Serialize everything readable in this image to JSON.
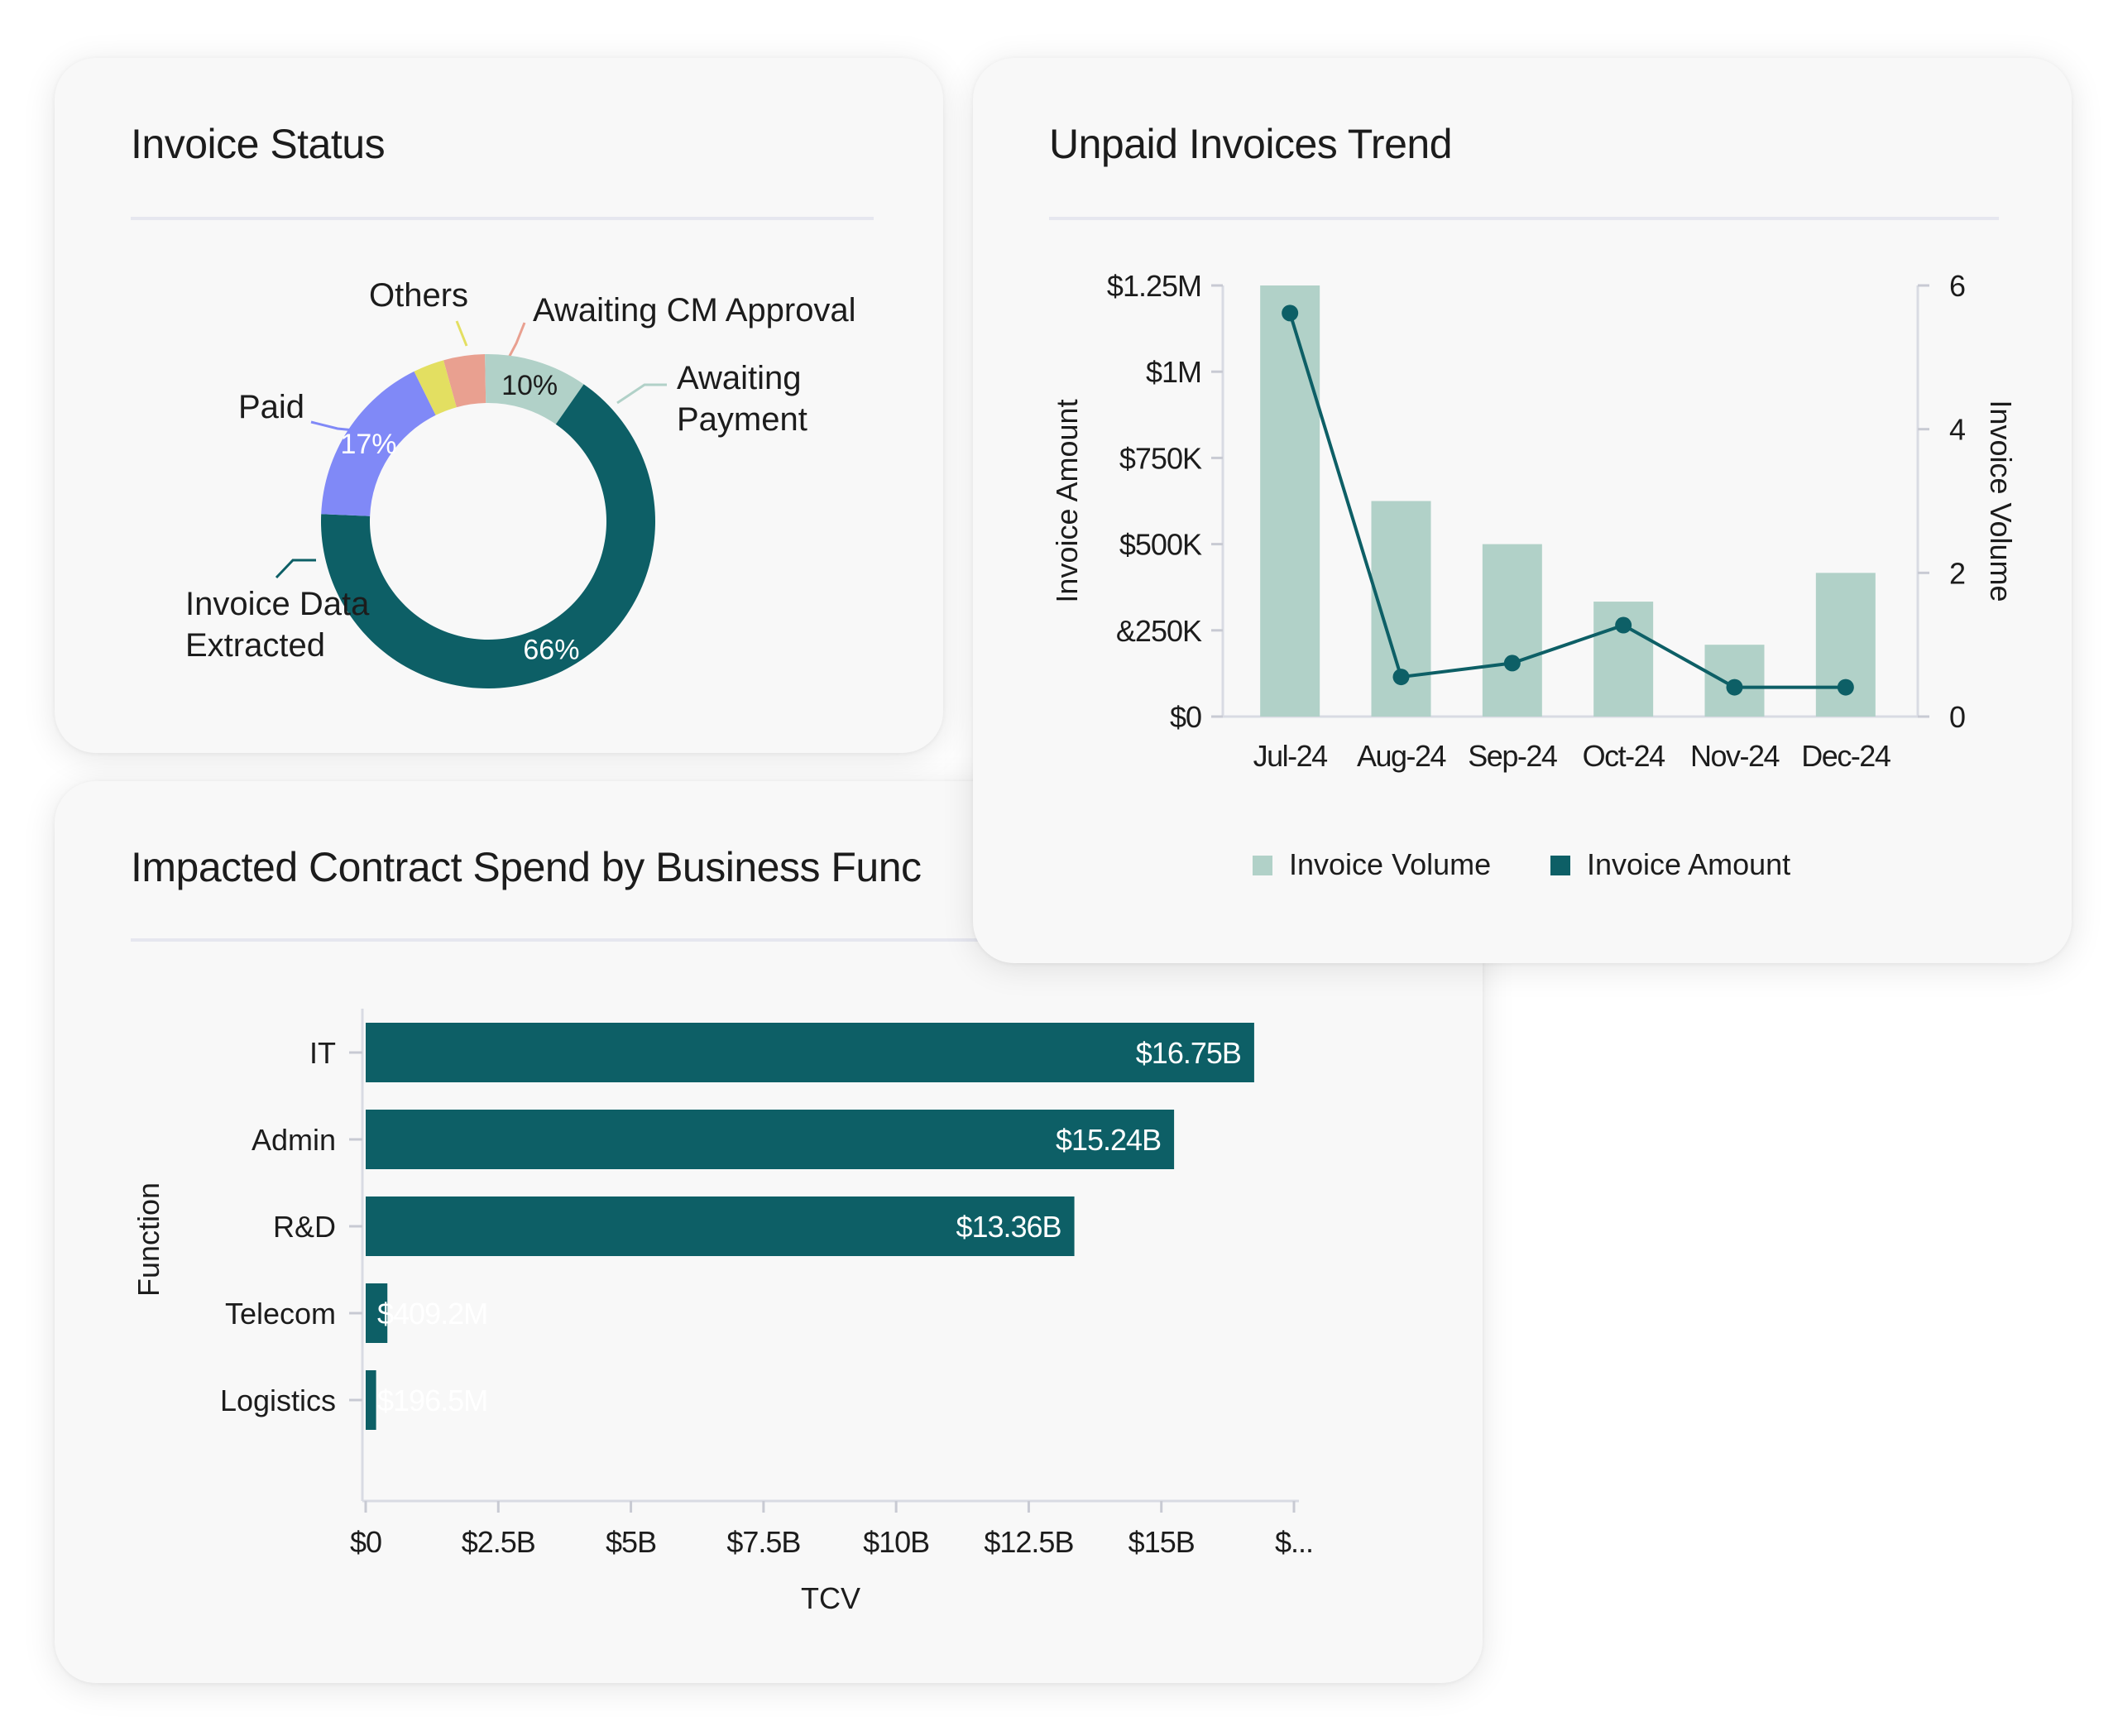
{
  "colors": {
    "dark_teal": "#0d5f66",
    "light_teal": "#b1d1c8",
    "periwinkle": "#8089f7",
    "yellow": "#e3df61",
    "salmon": "#e9a090",
    "axis_text": "#1c1c1c"
  },
  "cards": {
    "invoice_status": {
      "title": "Invoice Status"
    },
    "unpaid_trend": {
      "title": "Unpaid Invoices Trend"
    },
    "contract_spend": {
      "title": "Impacted Contract Spend by Business Func"
    }
  },
  "chart_data": [
    {
      "id": "invoice_status",
      "type": "pie",
      "title": "Invoice Status",
      "slices": [
        {
          "label": "Invoice Data\nExtracted",
          "value": 66,
          "value_label": "66%",
          "color": "#0d5f66"
        },
        {
          "label": "Paid",
          "value": 17,
          "value_label": "17%",
          "color": "#8089f7"
        },
        {
          "label": "Others",
          "value": 3,
          "value_label": "",
          "color": "#e3df61"
        },
        {
          "label": "Awaiting CM Approval",
          "value": 4,
          "value_label": "",
          "color": "#e9a090"
        },
        {
          "label": "Awaiting\nPayment",
          "value": 10,
          "value_label": "10%",
          "color": "#b1d1c8"
        }
      ]
    },
    {
      "id": "unpaid_trend",
      "type": "bar",
      "title": "Unpaid Invoices Trend",
      "categories": [
        "Jul-24",
        "Aug-24",
        "Sep-24",
        "Oct-24",
        "Nov-24",
        "Dec-24"
      ],
      "series": [
        {
          "name": "Invoice Volume",
          "kind": "bar",
          "axis": "right",
          "color": "#b1d1c8",
          "values": [
            6,
            3,
            2.4,
            1.6,
            1,
            2
          ]
        },
        {
          "name": "Invoice Amount",
          "kind": "line",
          "axis": "left",
          "color": "#0d5f66",
          "values": [
            1170000,
            115000,
            155000,
            265000,
            85000,
            85000
          ]
        }
      ],
      "ylabel": "Invoice Amount",
      "ylabel_right": "Invoice Volume",
      "ylim": [
        0,
        1250000
      ],
      "ylim_right": [
        0,
        6
      ],
      "y_ticks": [
        "$0",
        "&250K",
        "$500K",
        "$750K",
        "$1M",
        "$1.25M"
      ],
      "y_ticks_right": [
        "0",
        "2",
        "4",
        "6"
      ],
      "legend": "bottom"
    },
    {
      "id": "contract_spend",
      "type": "bar",
      "orientation": "horizontal",
      "title": "Impacted Contract Spend by Business Func",
      "categories": [
        "IT",
        "Admin",
        "R&D",
        "Telecom",
        "Logistics"
      ],
      "values": [
        16.75,
        15.24,
        13.36,
        0.4092,
        0.1965
      ],
      "data_labels": [
        "$16.75B",
        "$15.24B",
        "$13.36B",
        "$409.2M",
        "$196.5M"
      ],
      "xlabel": "TCV",
      "ylabel": "Function",
      "x_ticks": [
        "$0",
        "$2.5B",
        "$5B",
        "$7.5B",
        "$10B",
        "$12.5B",
        "$15B",
        "$..."
      ],
      "xlim": [
        0,
        17.5
      ],
      "grid": false
    }
  ]
}
